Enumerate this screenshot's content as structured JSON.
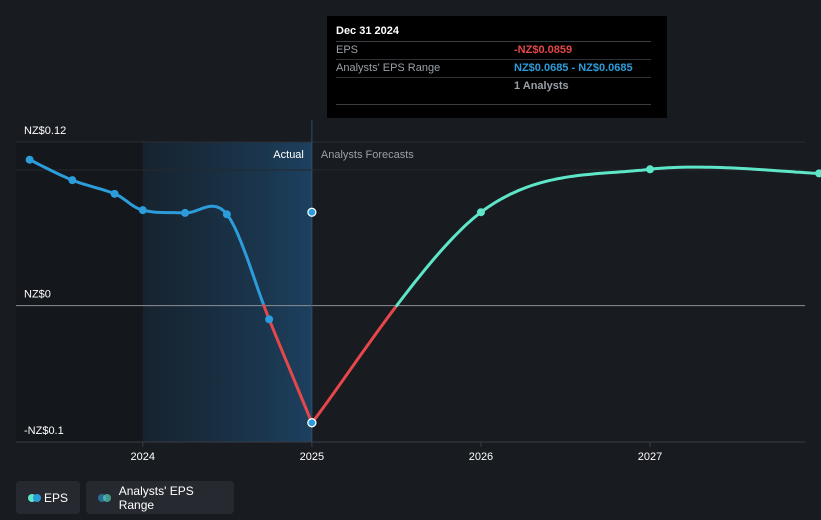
{
  "chart_data": {
    "type": "line",
    "x_ticks": [
      "2024",
      "2025",
      "2026",
      "2027"
    ],
    "y_axis_labels": [
      "NZ$0.12",
      "NZ$0",
      "-NZ$0.1"
    ],
    "y_ticks": [
      0.12,
      0,
      -0.1
    ],
    "ylim": [
      -0.1,
      0.12
    ],
    "xlim": [
      "2023-04",
      "2027-12"
    ],
    "section_labels": {
      "actual": "Actual",
      "forecast": "Analysts Forecasts"
    },
    "divider_date": "2024-12-31",
    "series": [
      {
        "name": "EPS",
        "kind": "actual",
        "colors": {
          "positive": "#2d9cdb",
          "negative": "#e5474a"
        },
        "points": [
          {
            "x": "2023-04-30",
            "y": 0.107
          },
          {
            "x": "2023-07-31",
            "y": 0.092
          },
          {
            "x": "2023-10-31",
            "y": 0.082
          },
          {
            "x": "2023-12-31",
            "y": 0.07
          },
          {
            "x": "2024-03-31",
            "y": 0.068
          },
          {
            "x": "2024-06-30",
            "y": 0.067
          },
          {
            "x": "2024-09-30",
            "y": -0.01
          },
          {
            "x": "2024-12-31",
            "y": -0.0859
          }
        ]
      },
      {
        "name": "Analysts' EPS Range",
        "kind": "forecast",
        "colors": {
          "positive": "#5ee6c8",
          "negative": "#e5474a"
        },
        "points": [
          {
            "x": "2024-12-31",
            "y": -0.0859
          },
          {
            "x": "2025-12-31",
            "y": 0.0685
          },
          {
            "x": "2026-12-31",
            "y": 0.1
          },
          {
            "x": "2027-12-31",
            "y": 0.097
          }
        ]
      }
    ],
    "highlight_point": {
      "x": "2024-12-31",
      "y": 0.0685
    },
    "grid": false,
    "legend_placement": "bottom-left"
  },
  "tooltip": {
    "date": "Dec 31 2024",
    "eps_label": "EPS",
    "eps_value": "-NZ$0.0859",
    "range_label": "Analysts' EPS Range",
    "range_value": "NZ$0.0685 - NZ$0.0685",
    "analysts_count": "1 Analysts"
  },
  "legend": {
    "eps_label": "EPS",
    "range_label": "Analysts' EPS Range",
    "colors": {
      "eps": [
        "#2d9cdb",
        "#5ee6c8"
      ],
      "range": [
        "#2d9cdb",
        "#5ee6c8"
      ]
    }
  }
}
